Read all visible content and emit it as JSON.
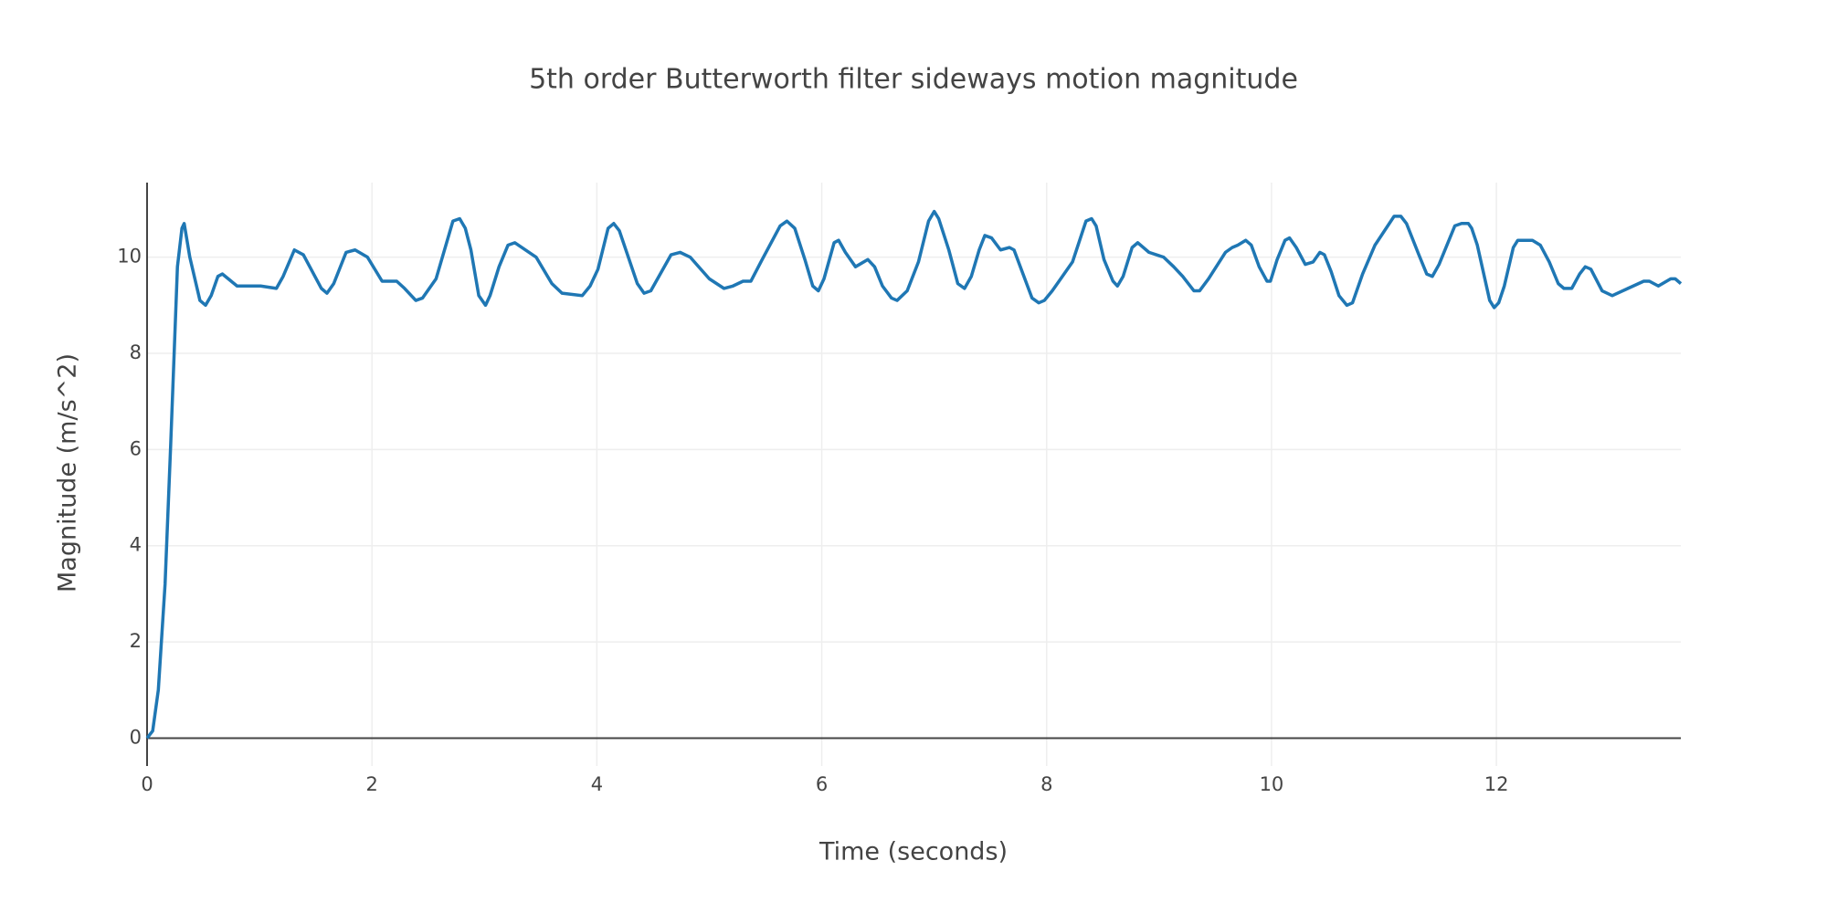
{
  "chart_data": {
    "type": "line",
    "title": "5th order Butterworth filter sideways motion magnitude",
    "xlabel": "Time (seconds)",
    "ylabel": "Magnitude (m/s^2)",
    "color": "#1f77b4",
    "grid": true,
    "zeroline": true,
    "xlim": [
      0,
      13.64
    ],
    "ylim": [
      -0.58,
      11.55
    ],
    "xticks": [
      0,
      2,
      4,
      6,
      8,
      10,
      12
    ],
    "yticks": [
      0,
      2,
      4,
      6,
      8,
      10
    ],
    "x": [
      0,
      0.05,
      0.1,
      0.16,
      0.21,
      0.27,
      0.31,
      0.33,
      0.38,
      0.47,
      0.52,
      0.57,
      0.63,
      0.67,
      0.8,
      0.9,
      1.01,
      1.15,
      1.21,
      1.31,
      1.39,
      1.55,
      1.6,
      1.66,
      1.77,
      1.85,
      1.96,
      2.09,
      2.22,
      2.29,
      2.39,
      2.45,
      2.57,
      2.72,
      2.78,
      2.83,
      2.88,
      2.95,
      3.01,
      3.05,
      3.13,
      3.21,
      3.27,
      3.46,
      3.6,
      3.69,
      3.87,
      3.94,
      4.01,
      4.1,
      4.15,
      4.2,
      4.36,
      4.42,
      4.48,
      4.66,
      4.74,
      4.83,
      5.0,
      5.13,
      5.21,
      5.3,
      5.37,
      5.47,
      5.63,
      5.69,
      5.76,
      5.85,
      5.92,
      5.97,
      6.02,
      6.11,
      6.15,
      6.21,
      6.3,
      6.41,
      6.47,
      6.54,
      6.62,
      6.67,
      6.76,
      6.86,
      6.95,
      7.0,
      7.04,
      7.13,
      7.21,
      7.27,
      7.33,
      7.4,
      7.45,
      7.51,
      7.59,
      7.67,
      7.71,
      7.79,
      7.87,
      7.93,
      7.98,
      8.05,
      8.14,
      8.23,
      8.35,
      8.4,
      8.44,
      8.51,
      8.59,
      8.63,
      8.68,
      8.76,
      8.81,
      8.91,
      9.04,
      9.13,
      9.21,
      9.31,
      9.36,
      9.44,
      9.59,
      9.65,
      9.7,
      9.77,
      9.82,
      9.89,
      9.96,
      9.99,
      10.05,
      10.12,
      10.16,
      10.22,
      10.3,
      10.37,
      10.43,
      10.47,
      10.53,
      10.6,
      10.67,
      10.72,
      10.81,
      10.92,
      11.09,
      11.15,
      11.2,
      11.31,
      11.38,
      11.43,
      11.49,
      11.63,
      11.69,
      11.75,
      11.78,
      11.83,
      11.94,
      11.98,
      12.02,
      12.07,
      12.15,
      12.19,
      12.27,
      12.32,
      12.39,
      12.47,
      12.55,
      12.6,
      12.67,
      12.74,
      12.79,
      12.84,
      12.94,
      13.03,
      13.17,
      13.31,
      13.36,
      13.44,
      13.55,
      13.59,
      13.64
    ],
    "values": [
      0,
      0.15,
      1.0,
      3.2,
      6.1,
      9.8,
      10.6,
      10.7,
      10.0,
      9.1,
      9.0,
      9.2,
      9.6,
      9.65,
      9.4,
      9.4,
      9.4,
      9.35,
      9.6,
      10.15,
      10.05,
      9.35,
      9.25,
      9.45,
      10.1,
      10.15,
      10.0,
      9.5,
      9.5,
      9.35,
      9.1,
      9.15,
      9.55,
      10.75,
      10.8,
      10.6,
      10.15,
      9.2,
      9.0,
      9.2,
      9.8,
      10.25,
      10.3,
      10.0,
      9.45,
      9.25,
      9.2,
      9.4,
      9.75,
      10.6,
      10.7,
      10.55,
      9.45,
      9.25,
      9.3,
      10.05,
      10.1,
      10.0,
      9.55,
      9.35,
      9.4,
      9.5,
      9.5,
      9.95,
      10.65,
      10.75,
      10.6,
      9.95,
      9.4,
      9.3,
      9.55,
      10.3,
      10.35,
      10.1,
      9.8,
      9.95,
      9.8,
      9.4,
      9.15,
      9.1,
      9.3,
      9.9,
      10.75,
      10.95,
      10.8,
      10.15,
      9.45,
      9.35,
      9.6,
      10.15,
      10.45,
      10.4,
      10.15,
      10.2,
      10.15,
      9.65,
      9.15,
      9.05,
      9.1,
      9.3,
      9.6,
      9.9,
      10.75,
      10.8,
      10.65,
      9.95,
      9.5,
      9.4,
      9.6,
      10.2,
      10.3,
      10.1,
      10.0,
      9.8,
      9.6,
      9.3,
      9.3,
      9.55,
      10.1,
      10.2,
      10.25,
      10.35,
      10.25,
      9.8,
      9.5,
      9.5,
      9.95,
      10.35,
      10.4,
      10.2,
      9.85,
      9.9,
      10.1,
      10.05,
      9.7,
      9.2,
      9.0,
      9.05,
      9.65,
      10.25,
      10.85,
      10.85,
      10.7,
      10.05,
      9.65,
      9.6,
      9.85,
      10.65,
      10.7,
      10.7,
      10.6,
      10.25,
      9.1,
      8.95,
      9.05,
      9.4,
      10.2,
      10.35,
      10.35,
      10.35,
      10.25,
      9.9,
      9.45,
      9.35,
      9.35,
      9.65,
      9.8,
      9.75,
      9.3,
      9.2,
      9.35,
      9.5,
      9.5,
      9.4,
      9.55,
      9.55,
      9.45
    ]
  }
}
